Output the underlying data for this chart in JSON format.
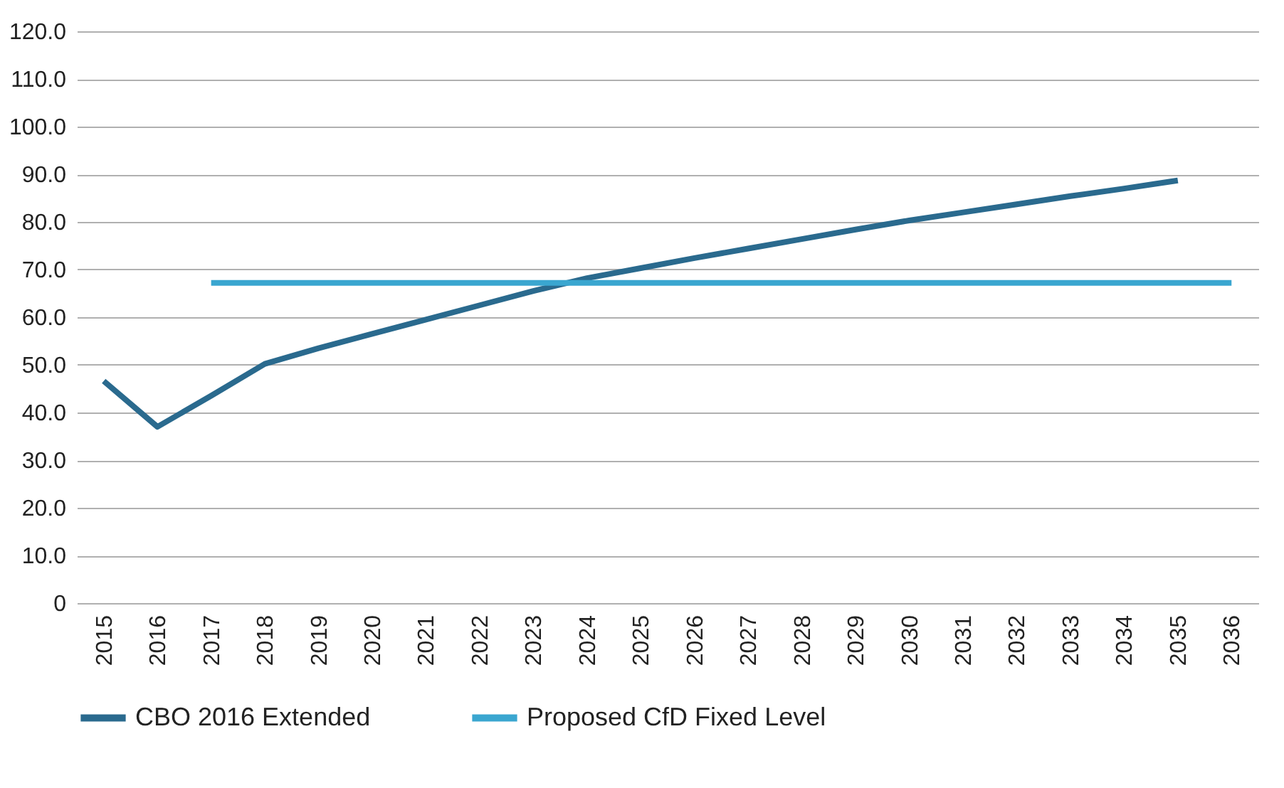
{
  "chart_data": {
    "type": "line",
    "categories": [
      "2015",
      "2016",
      "2017",
      "2018",
      "2019",
      "2020",
      "2021",
      "2022",
      "2023",
      "2024",
      "2025",
      "2026",
      "2027",
      "2028",
      "2029",
      "2030",
      "2031",
      "2032",
      "2033",
      "2034",
      "2035",
      "2036"
    ],
    "series": [
      {
        "name": "CBO 2016 Extended",
        "color": "#2a6a8e",
        "values": [
          46.6,
          37.0,
          43.5,
          50.2,
          53.5,
          56.5,
          59.5,
          62.5,
          65.5,
          68.2,
          70.3,
          72.4,
          74.4,
          76.4,
          78.4,
          80.3,
          82.0,
          83.7,
          85.4,
          87.0,
          88.7,
          null
        ]
      },
      {
        "name": "Proposed CfD Fixed Level",
        "color": "#3aa6d0",
        "values": [
          null,
          null,
          67.2,
          67.2,
          67.2,
          67.2,
          67.2,
          67.2,
          67.2,
          67.2,
          67.2,
          67.2,
          67.2,
          67.2,
          67.2,
          67.2,
          67.2,
          67.2,
          67.2,
          67.2,
          67.2,
          67.2
        ]
      }
    ],
    "ylim": [
      0,
      120
    ],
    "yticks": [
      0,
      {
        "value": 10,
        "label": "10.0"
      },
      {
        "value": 20,
        "label": "20.0"
      },
      {
        "value": 30,
        "label": "30.0"
      },
      {
        "value": 40,
        "label": "40.0"
      },
      {
        "value": 50,
        "label": "50.0"
      },
      {
        "value": 60,
        "label": "60.0"
      },
      {
        "value": 70,
        "label": "70.0"
      },
      {
        "value": 80,
        "label": "80.0"
      },
      {
        "value": 90,
        "label": "90.0"
      },
      {
        "value": 100,
        "label": "100.0"
      },
      {
        "value": 110,
        "label": "110.0"
      },
      {
        "value": 120,
        "label": "120.0"
      }
    ],
    "grid": "y",
    "legend": "bottom",
    "line_style": "solid",
    "marker": "none"
  }
}
